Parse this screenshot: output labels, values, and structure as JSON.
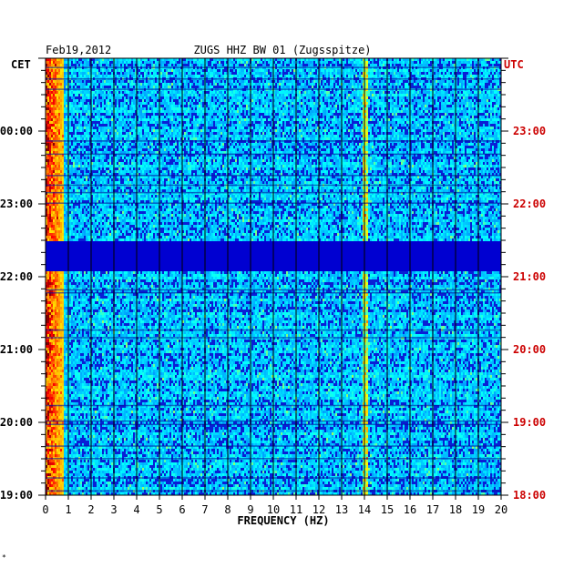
{
  "chart_data": {
    "type": "heatmap",
    "date": "Feb19,2012",
    "title": "ZUGS HHZ BW 01 (Zugsspitze)",
    "left_axis_label": "CET",
    "right_axis_label": "UTC",
    "xlabel": "FREQUENCY (HZ)",
    "xlim": [
      0,
      20
    ],
    "x_ticks": [
      "0",
      "1",
      "2",
      "3",
      "4",
      "5",
      "6",
      "7",
      "8",
      "9",
      "10",
      "11",
      "12",
      "13",
      "14",
      "15",
      "16",
      "17",
      "18",
      "19",
      "20"
    ],
    "left_ticks": [
      "00:00",
      "23:00",
      "22:00",
      "21:00",
      "20:00",
      "19:00"
    ],
    "right_ticks": [
      "23:00",
      "22:00",
      "21:00",
      "20:00",
      "19:00",
      "18:00"
    ],
    "time_span_hours": [
      0,
      6
    ],
    "colors": {
      "left_tick_color": "#000000",
      "right_tick_color": "#cc0000",
      "background_low": "#0a1fd6",
      "gap_band": "#00007a"
    },
    "features": {
      "low_freq_energy_hz": [
        0,
        0.8
      ],
      "spectral_line_hz": 14,
      "gap_bands_hours_from_top": [
        2.5,
        2.9
      ]
    }
  },
  "footnote_mark": "*"
}
